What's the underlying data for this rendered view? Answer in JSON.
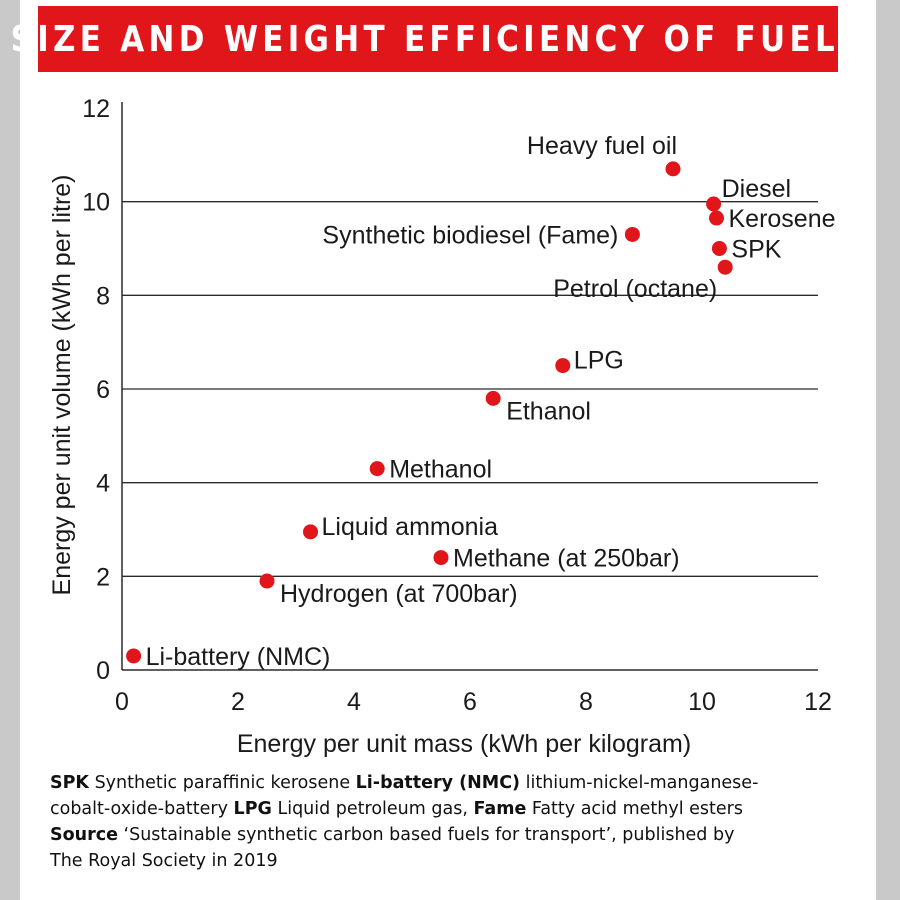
{
  "chart_data": {
    "type": "scatter",
    "title": "SIZE AND WEIGHT EFFICIENCY OF FUELS",
    "xlabel": "Energy per unit mass (kWh per kilogram)",
    "ylabel": "Energy per unit volume (kWh per litre)",
    "xlim": [
      0,
      12
    ],
    "ylim": [
      0,
      12
    ],
    "xticks": [
      0,
      2,
      4,
      6,
      8,
      10,
      12
    ],
    "yticks": [
      0,
      2,
      4,
      6,
      8,
      10,
      12
    ],
    "grid": "horizontal",
    "point_color": "#e0161b",
    "points": [
      {
        "label": "Heavy fuel oil",
        "x": 9.5,
        "y": 10.7,
        "label_side": "above-left"
      },
      {
        "label": "Diesel",
        "x": 10.2,
        "y": 9.95,
        "label_side": "above-right"
      },
      {
        "label": "Kerosene",
        "x": 10.25,
        "y": 9.65,
        "label_side": "right"
      },
      {
        "label": "Synthetic biodiesel (Fame)",
        "x": 8.8,
        "y": 9.3,
        "label_side": "left"
      },
      {
        "label": "SPK",
        "x": 10.3,
        "y": 9.0,
        "label_side": "right"
      },
      {
        "label": "Petrol (octane)",
        "x": 10.4,
        "y": 8.6,
        "label_side": "below-left"
      },
      {
        "label": "LPG",
        "x": 7.6,
        "y": 6.5,
        "label_side": "right-up"
      },
      {
        "label": "Ethanol",
        "x": 6.4,
        "y": 5.8,
        "label_side": "right-down"
      },
      {
        "label": "Methanol",
        "x": 4.4,
        "y": 4.3,
        "label_side": "right"
      },
      {
        "label": "Liquid ammonia",
        "x": 3.25,
        "y": 2.95,
        "label_side": "right-up"
      },
      {
        "label": "Methane (at 250bar)",
        "x": 5.5,
        "y": 2.4,
        "label_side": "right"
      },
      {
        "label": "Hydrogen (at 700bar)",
        "x": 2.5,
        "y": 1.9,
        "label_side": "right-down"
      },
      {
        "label": "Li-battery (NMC)",
        "x": 0.2,
        "y": 0.3,
        "label_side": "right"
      }
    ]
  },
  "footnote": {
    "line1_t1": "SPK",
    "line1_t2": " Synthetic paraffinic kerosene ",
    "line1_t3": "Li-battery (NMC)",
    "line1_t4": " lithium-nickel-manganese-",
    "line2_t1": "cobalt-oxide-battery ",
    "line2_t2": "LPG",
    "line2_t3": " Liquid petroleum gas, ",
    "line2_t4": "Fame",
    "line2_t5": " Fatty acid methyl esters",
    "line3_t1": "Source",
    "line3_t2": " ‘Sustainable synthetic carbon based fuels for transport’, published by",
    "line4_t1": "The Royal Society in 2019"
  }
}
